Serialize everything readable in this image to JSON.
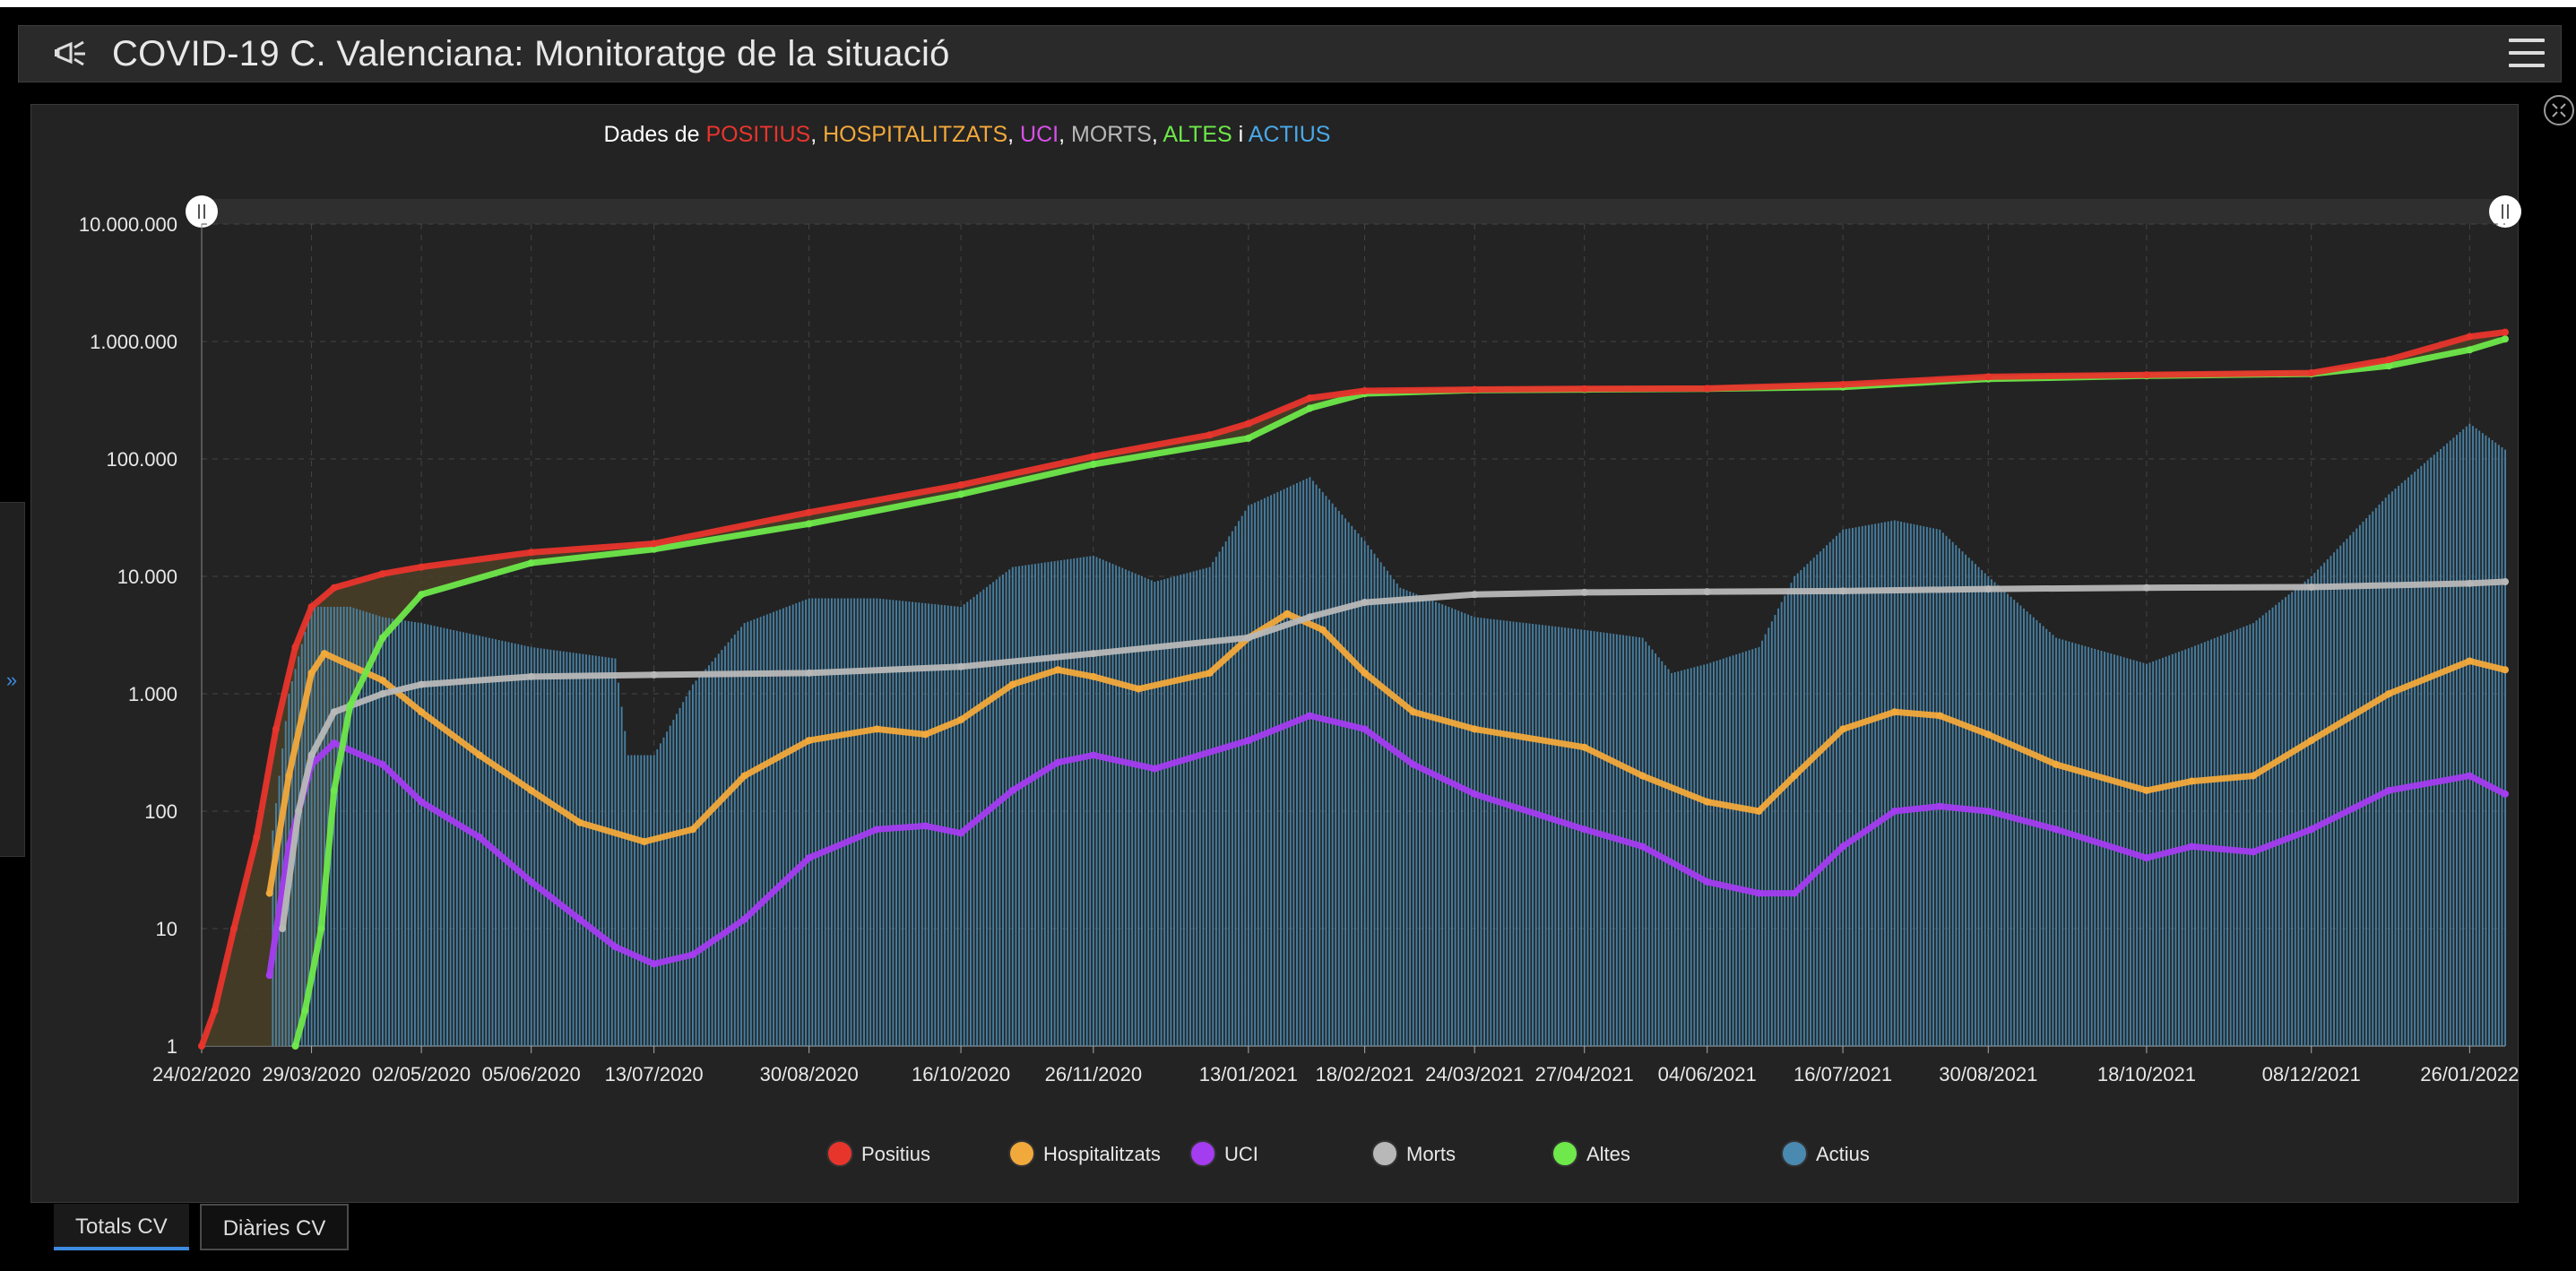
{
  "header": {
    "title": "COVID-19 C. Valenciana: Monitoratge de la situació",
    "logo_icon": "megaphone-icon",
    "menu_icon": "hamburger-menu-icon"
  },
  "tabs": [
    {
      "label": "Totals CV",
      "active": true
    },
    {
      "label": "Diàries CV",
      "active": false
    }
  ],
  "colors": {
    "positius": "#e8352c",
    "hospitalitzats": "#f2a93b",
    "uci": "#a43cf0",
    "morts": "#b8b8b8",
    "altes": "#6ee84a",
    "actius": "#4a8ab0",
    "background": "#232323"
  },
  "chart_data": {
    "type": "line",
    "title_parts": [
      {
        "text": "Dades de ",
        "color": "#ffffff"
      },
      {
        "text": "POSITIUS",
        "color": "#e8352c"
      },
      {
        "text": ", ",
        "color": "#ffffff"
      },
      {
        "text": "HOSPITALITZATS",
        "color": "#f2a93b"
      },
      {
        "text": ", ",
        "color": "#ffffff"
      },
      {
        "text": "UCI",
        "color": "#d850e8"
      },
      {
        "text": ", ",
        "color": "#ffffff"
      },
      {
        "text": "MORTS",
        "color": "#b8b8b8"
      },
      {
        "text": ", ",
        "color": "#ffffff"
      },
      {
        "text": "ALTES",
        "color": "#6ee84a"
      },
      {
        "text": " i ",
        "color": "#ffffff"
      },
      {
        "text": "ACTIUS",
        "color": "#4aa8e8"
      }
    ],
    "y_scale": "log",
    "ylim": [
      1,
      10000000
    ],
    "y_ticks": [
      "1",
      "10",
      "100",
      "1.000",
      "10.000",
      "100.000",
      "1.000.000",
      "10.000.000"
    ],
    "x_ticks": [
      "24/02/2020",
      "29/03/2020",
      "02/05/2020",
      "05/06/2020",
      "13/07/2020",
      "30/08/2020",
      "16/10/2020",
      "26/11/2020",
      "13/01/2021",
      "18/02/2021",
      "24/03/2021",
      "27/04/2021",
      "04/06/2021",
      "16/07/2021",
      "30/08/2021",
      "18/10/2021",
      "08/12/2021",
      "26/01/2022"
    ],
    "x_range": [
      "24/02/2020",
      "06/02/2022"
    ],
    "grid": true,
    "legend_position": "bottom",
    "legend": [
      "Positius",
      "Hospitalitzats",
      "UCI",
      "Morts",
      "Altes",
      "Actius"
    ],
    "series": [
      {
        "name": "Positius",
        "key": "positius",
        "kind": "line",
        "points": [
          [
            "24/02/2020",
            1
          ],
          [
            "28/02/2020",
            2
          ],
          [
            "05/03/2020",
            10
          ],
          [
            "12/03/2020",
            60
          ],
          [
            "18/03/2020",
            500
          ],
          [
            "24/03/2020",
            2500
          ],
          [
            "29/03/2020",
            5500
          ],
          [
            "05/04/2020",
            8000
          ],
          [
            "20/04/2020",
            10500
          ],
          [
            "02/05/2020",
            12000
          ],
          [
            "05/06/2020",
            16000
          ],
          [
            "13/07/2020",
            19000
          ],
          [
            "30/08/2020",
            35000
          ],
          [
            "16/10/2020",
            60000
          ],
          [
            "26/11/2020",
            105000
          ],
          [
            "01/01/2021",
            160000
          ],
          [
            "13/01/2021",
            200000
          ],
          [
            "01/02/2021",
            330000
          ],
          [
            "18/02/2021",
            380000
          ],
          [
            "24/03/2021",
            390000
          ],
          [
            "27/04/2021",
            395000
          ],
          [
            "04/06/2021",
            398000
          ],
          [
            "16/07/2021",
            430000
          ],
          [
            "30/08/2021",
            500000
          ],
          [
            "18/10/2021",
            520000
          ],
          [
            "08/12/2021",
            540000
          ],
          [
            "01/01/2022",
            700000
          ],
          [
            "26/01/2022",
            1100000
          ],
          [
            "06/02/2022",
            1200000
          ]
        ]
      },
      {
        "name": "Altes",
        "key": "altes",
        "kind": "line",
        "points": [
          [
            "24/03/2020",
            1
          ],
          [
            "27/03/2020",
            2
          ],
          [
            "01/04/2020",
            10
          ],
          [
            "05/04/2020",
            150
          ],
          [
            "10/04/2020",
            800
          ],
          [
            "20/04/2020",
            3000
          ],
          [
            "02/05/2020",
            7000
          ],
          [
            "05/06/2020",
            13000
          ],
          [
            "13/07/2020",
            17000
          ],
          [
            "30/08/2020",
            28000
          ],
          [
            "16/10/2020",
            50000
          ],
          [
            "26/11/2020",
            90000
          ],
          [
            "13/01/2021",
            150000
          ],
          [
            "01/02/2021",
            270000
          ],
          [
            "18/02/2021",
            360000
          ],
          [
            "24/03/2021",
            385000
          ],
          [
            "27/04/2021",
            390000
          ],
          [
            "04/06/2021",
            395000
          ],
          [
            "16/07/2021",
            410000
          ],
          [
            "30/08/2021",
            480000
          ],
          [
            "18/10/2021",
            510000
          ],
          [
            "08/12/2021",
            530000
          ],
          [
            "01/01/2022",
            620000
          ],
          [
            "26/01/2022",
            850000
          ],
          [
            "06/02/2022",
            1050000
          ]
        ]
      },
      {
        "name": "Morts",
        "key": "morts",
        "kind": "line",
        "points": [
          [
            "20/03/2020",
            10
          ],
          [
            "25/03/2020",
            100
          ],
          [
            "29/03/2020",
            300
          ],
          [
            "05/04/2020",
            700
          ],
          [
            "20/04/2020",
            1000
          ],
          [
            "02/05/2020",
            1200
          ],
          [
            "05/06/2020",
            1400
          ],
          [
            "13/07/2020",
            1450
          ],
          [
            "30/08/2020",
            1500
          ],
          [
            "16/10/2020",
            1700
          ],
          [
            "26/11/2020",
            2200
          ],
          [
            "13/01/2021",
            3000
          ],
          [
            "01/02/2021",
            4500
          ],
          [
            "18/02/2021",
            6000
          ],
          [
            "24/03/2021",
            7000
          ],
          [
            "27/04/2021",
            7300
          ],
          [
            "04/06/2021",
            7400
          ],
          [
            "16/07/2021",
            7500
          ],
          [
            "30/08/2021",
            7800
          ],
          [
            "18/10/2021",
            8000
          ],
          [
            "08/12/2021",
            8100
          ],
          [
            "26/01/2022",
            8700
          ],
          [
            "06/02/2022",
            9000
          ]
        ]
      },
      {
        "name": "Hospitalitzats",
        "key": "hospitalitzats",
        "kind": "line",
        "points": [
          [
            "16/03/2020",
            20
          ],
          [
            "22/03/2020",
            200
          ],
          [
            "29/03/2020",
            1500
          ],
          [
            "02/04/2020",
            2200
          ],
          [
            "20/04/2020",
            1300
          ],
          [
            "02/05/2020",
            700
          ],
          [
            "20/05/2020",
            300
          ],
          [
            "05/06/2020",
            150
          ],
          [
            "20/06/2020",
            80
          ],
          [
            "10/07/2020",
            55
          ],
          [
            "25/07/2020",
            70
          ],
          [
            "10/08/2020",
            200
          ],
          [
            "30/08/2020",
            400
          ],
          [
            "20/09/2020",
            500
          ],
          [
            "05/10/2020",
            450
          ],
          [
            "16/10/2020",
            600
          ],
          [
            "01/11/2020",
            1200
          ],
          [
            "15/11/2020",
            1600
          ],
          [
            "26/11/2020",
            1400
          ],
          [
            "10/12/2020",
            1100
          ],
          [
            "01/01/2021",
            1500
          ],
          [
            "13/01/2021",
            3000
          ],
          [
            "25/01/2021",
            4800
          ],
          [
            "05/02/2021",
            3500
          ],
          [
            "18/02/2021",
            1500
          ],
          [
            "05/03/2021",
            700
          ],
          [
            "24/03/2021",
            500
          ],
          [
            "27/04/2021",
            350
          ],
          [
            "15/05/2021",
            200
          ],
          [
            "04/06/2021",
            120
          ],
          [
            "20/06/2021",
            100
          ],
          [
            "01/07/2021",
            200
          ],
          [
            "16/07/2021",
            500
          ],
          [
            "01/08/2021",
            700
          ],
          [
            "15/08/2021",
            650
          ],
          [
            "30/08/2021",
            450
          ],
          [
            "20/09/2021",
            250
          ],
          [
            "18/10/2021",
            150
          ],
          [
            "01/11/2021",
            180
          ],
          [
            "20/11/2021",
            200
          ],
          [
            "08/12/2021",
            400
          ],
          [
            "01/01/2022",
            1000
          ],
          [
            "26/01/2022",
            1900
          ],
          [
            "06/02/2022",
            1600
          ]
        ]
      },
      {
        "name": "UCI",
        "key": "uci",
        "kind": "line",
        "points": [
          [
            "16/03/2020",
            4
          ],
          [
            "22/03/2020",
            50
          ],
          [
            "29/03/2020",
            250
          ],
          [
            "05/04/2020",
            380
          ],
          [
            "20/04/2020",
            250
          ],
          [
            "02/05/2020",
            120
          ],
          [
            "20/05/2020",
            60
          ],
          [
            "05/06/2020",
            25
          ],
          [
            "20/06/2020",
            12
          ],
          [
            "01/07/2020",
            7
          ],
          [
            "13/07/2020",
            5
          ],
          [
            "25/07/2020",
            6
          ],
          [
            "10/08/2020",
            12
          ],
          [
            "30/08/2020",
            40
          ],
          [
            "20/09/2020",
            70
          ],
          [
            "05/10/2020",
            75
          ],
          [
            "16/10/2020",
            65
          ],
          [
            "01/11/2020",
            150
          ],
          [
            "15/11/2020",
            260
          ],
          [
            "26/11/2020",
            300
          ],
          [
            "15/12/2020",
            230
          ],
          [
            "13/01/2021",
            400
          ],
          [
            "01/02/2021",
            650
          ],
          [
            "18/02/2021",
            500
          ],
          [
            "05/03/2021",
            250
          ],
          [
            "24/03/2021",
            140
          ],
          [
            "27/04/2021",
            70
          ],
          [
            "15/05/2021",
            50
          ],
          [
            "04/06/2021",
            25
          ],
          [
            "20/06/2021",
            20
          ],
          [
            "01/07/2021",
            20
          ],
          [
            "16/07/2021",
            50
          ],
          [
            "01/08/2021",
            100
          ],
          [
            "15/08/2021",
            110
          ],
          [
            "30/08/2021",
            100
          ],
          [
            "20/09/2021",
            70
          ],
          [
            "18/10/2021",
            40
          ],
          [
            "01/11/2021",
            50
          ],
          [
            "20/11/2021",
            45
          ],
          [
            "08/12/2021",
            70
          ],
          [
            "01/01/2022",
            150
          ],
          [
            "26/01/2022",
            200
          ],
          [
            "06/02/2022",
            140
          ]
        ]
      },
      {
        "name": "Actius",
        "key": "actius",
        "kind": "bars",
        "points": [
          [
            "16/03/2020",
            40
          ],
          [
            "22/03/2020",
            1000
          ],
          [
            "29/03/2020",
            5500
          ],
          [
            "10/04/2020",
            5500
          ],
          [
            "20/04/2020",
            4500
          ],
          [
            "02/05/2020",
            4000
          ],
          [
            "05/06/2020",
            2500
          ],
          [
            "01/07/2020",
            2000
          ],
          [
            "05/07/2020",
            300
          ],
          [
            "13/07/2020",
            300
          ],
          [
            "25/07/2020",
            1200
          ],
          [
            "10/08/2020",
            4000
          ],
          [
            "30/08/2020",
            6500
          ],
          [
            "20/09/2020",
            6500
          ],
          [
            "16/10/2020",
            5500
          ],
          [
            "01/11/2020",
            12000
          ],
          [
            "26/11/2020",
            15000
          ],
          [
            "15/12/2020",
            9000
          ],
          [
            "01/01/2021",
            12000
          ],
          [
            "13/01/2021",
            40000
          ],
          [
            "01/02/2021",
            70000
          ],
          [
            "18/02/2021",
            20000
          ],
          [
            "01/03/2021",
            8000
          ],
          [
            "24/03/2021",
            4500
          ],
          [
            "27/04/2021",
            3500
          ],
          [
            "15/05/2021",
            3000
          ],
          [
            "24/05/2021",
            1500
          ],
          [
            "04/06/2021",
            1800
          ],
          [
            "20/06/2021",
            2500
          ],
          [
            "01/07/2021",
            10000
          ],
          [
            "16/07/2021",
            25000
          ],
          [
            "01/08/2021",
            30000
          ],
          [
            "15/08/2021",
            25000
          ],
          [
            "30/08/2021",
            10000
          ],
          [
            "20/09/2021",
            3000
          ],
          [
            "18/10/2021",
            1800
          ],
          [
            "01/11/2021",
            2500
          ],
          [
            "20/11/2021",
            4000
          ],
          [
            "08/12/2021",
            10000
          ],
          [
            "01/01/2022",
            50000
          ],
          [
            "26/01/2022",
            200000
          ],
          [
            "06/02/2022",
            120000
          ]
        ]
      }
    ]
  }
}
